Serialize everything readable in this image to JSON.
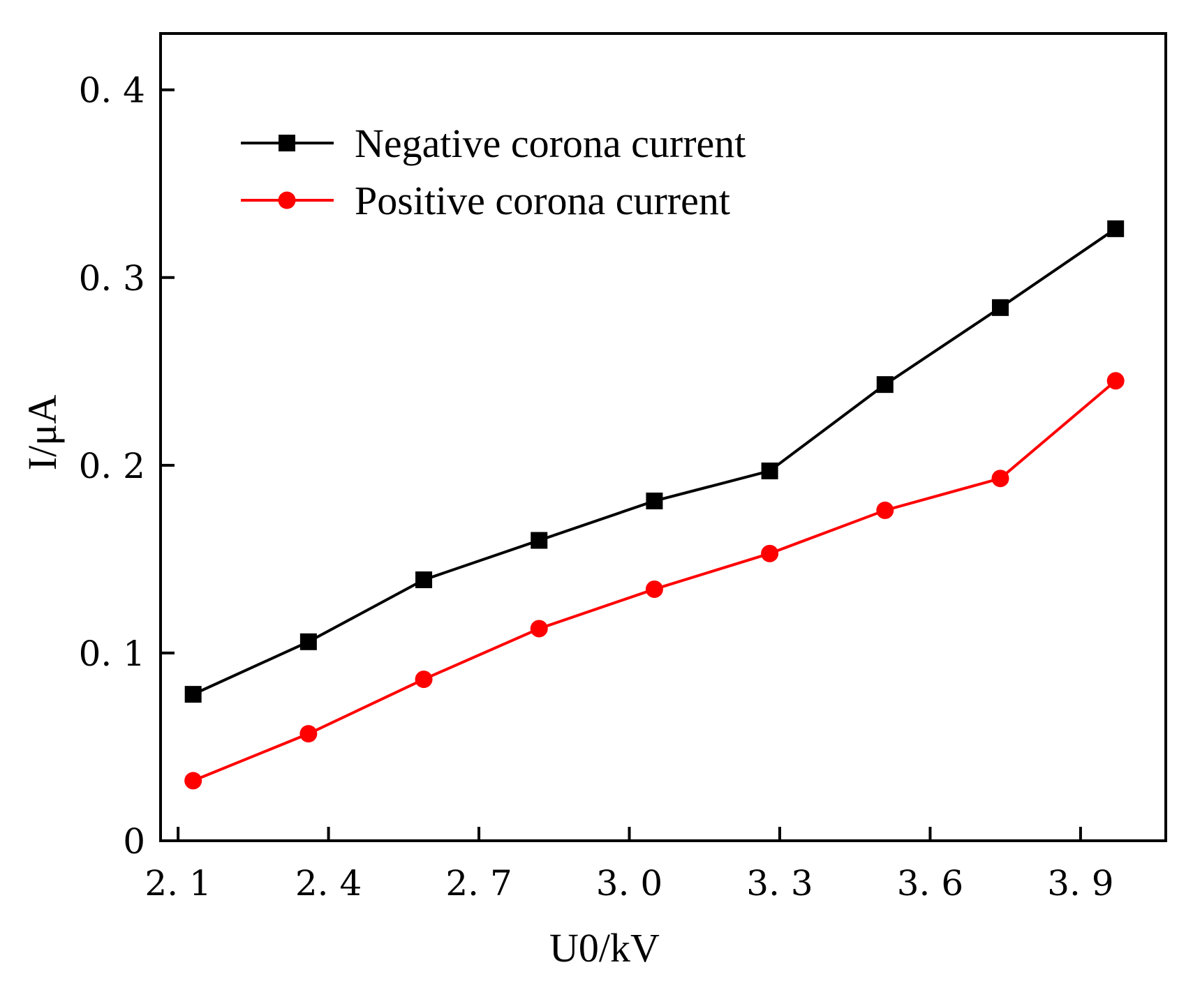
{
  "chart_data": {
    "type": "line",
    "title": "",
    "xlabel": "U0/kV",
    "ylabel": "I/μA",
    "xlim": [
      2.065,
      4.07
    ],
    "ylim": [
      0,
      0.43
    ],
    "xticks": [
      {
        "value": 2.1,
        "label": "2. 1"
      },
      {
        "value": 2.4,
        "label": "2. 4"
      },
      {
        "value": 2.7,
        "label": "2. 7"
      },
      {
        "value": 3.0,
        "label": "3. 0"
      },
      {
        "value": 3.3,
        "label": "3. 3"
      },
      {
        "value": 3.6,
        "label": "3. 6"
      },
      {
        "value": 3.9,
        "label": "3. 9"
      }
    ],
    "yticks": [
      {
        "value": 0,
        "label": "0"
      },
      {
        "value": 0.1,
        "label": "0. 1"
      },
      {
        "value": 0.2,
        "label": "0. 2"
      },
      {
        "value": 0.3,
        "label": "0. 3"
      },
      {
        "value": 0.4,
        "label": "0. 4"
      }
    ],
    "grid": false,
    "legend_position": "top-left",
    "series": [
      {
        "name": "Negative corona current",
        "color": "#000000",
        "marker": "square",
        "x": [
          2.13,
          2.36,
          2.59,
          2.82,
          3.05,
          3.28,
          3.51,
          3.74,
          3.97
        ],
        "y": [
          0.078,
          0.106,
          0.139,
          0.16,
          0.181,
          0.197,
          0.243,
          0.284,
          0.326
        ]
      },
      {
        "name": "Positive corona current",
        "color": "#ff0000",
        "marker": "circle",
        "x": [
          2.13,
          2.36,
          2.59,
          2.82,
          3.05,
          3.28,
          3.51,
          3.74,
          3.97
        ],
        "y": [
          0.032,
          0.057,
          0.086,
          0.113,
          0.134,
          0.153,
          0.176,
          0.193,
          0.245
        ]
      }
    ]
  }
}
